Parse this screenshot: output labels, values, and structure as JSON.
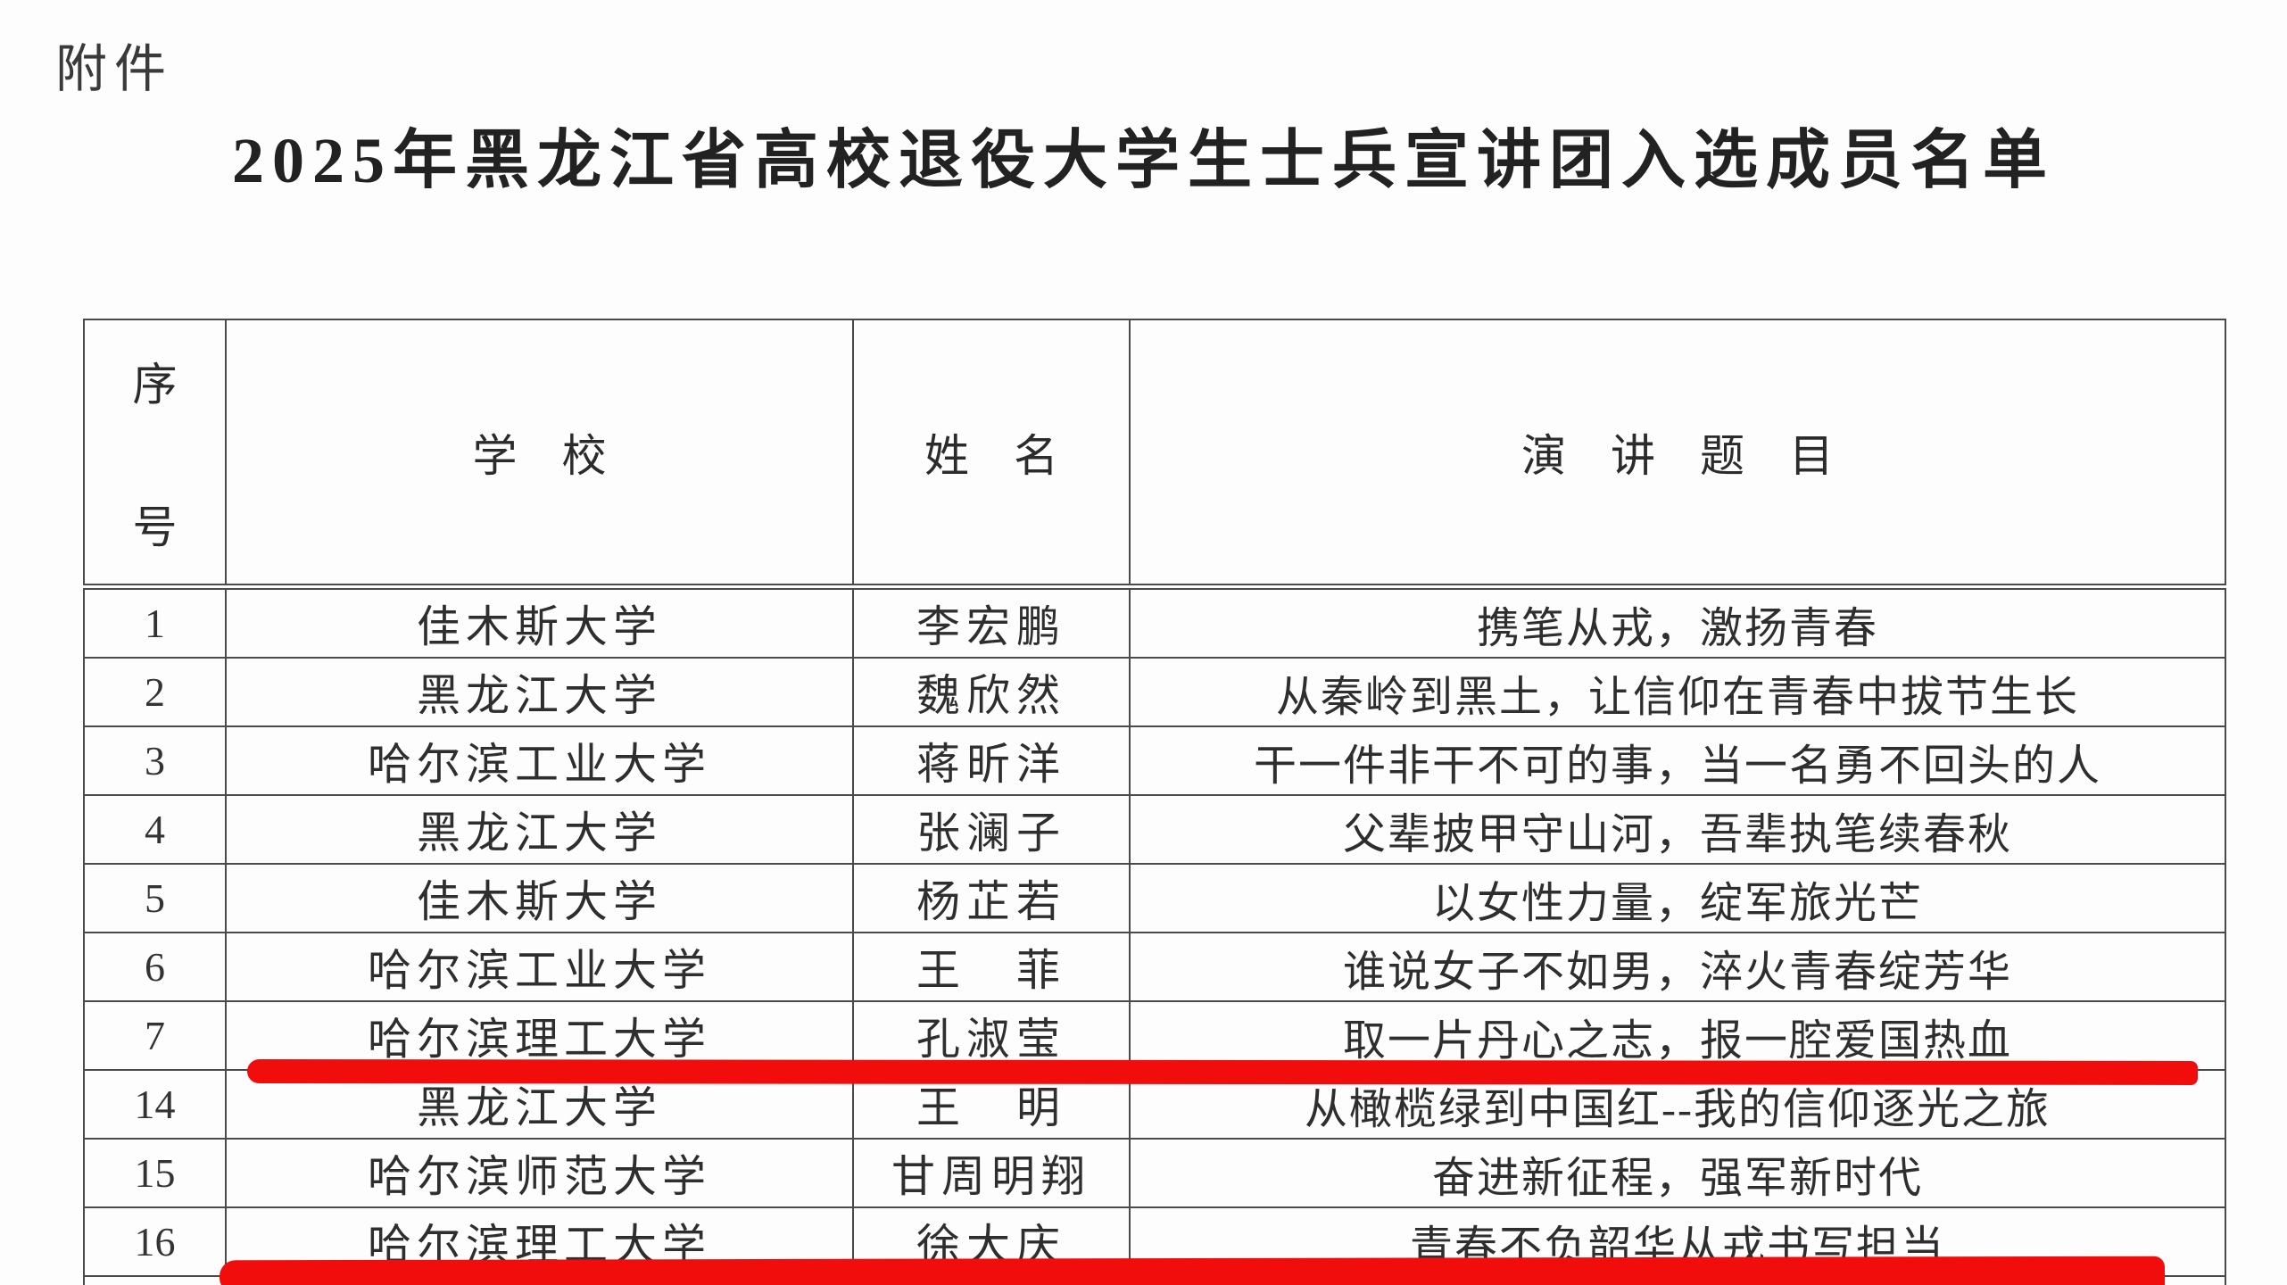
{
  "document": {
    "attachment_label": "附件",
    "title": "2025年黑龙江省高校退役大学生士兵宣讲团入选成员名单"
  },
  "table": {
    "headers": {
      "index_top": "序",
      "index_bottom": "号",
      "school": "学　校",
      "name": "姓　名",
      "topic": "演　讲　题　目"
    },
    "rows": [
      {
        "no": "1",
        "school": "佳木斯大学",
        "name": "李宏鹏",
        "topic": "携笔从戎，激扬青春"
      },
      {
        "no": "2",
        "school": "黑龙江大学",
        "name": "魏欣然",
        "topic": "从秦岭到黑土，让信仰在青春中拔节生长"
      },
      {
        "no": "3",
        "school": "哈尔滨工业大学",
        "name": "蒋昕洋",
        "topic": "干一件非干不可的事，当一名勇不回头的人"
      },
      {
        "no": "4",
        "school": "黑龙江大学",
        "name": "张澜子",
        "topic": "父辈披甲守山河，吾辈执笔续春秋"
      },
      {
        "no": "5",
        "school": "佳木斯大学",
        "name": "杨芷若",
        "topic": "以女性力量，绽军旅光芒"
      },
      {
        "no": "6",
        "school": "哈尔滨工业大学",
        "name": "王　菲",
        "topic": "谁说女子不如男，淬火青春绽芳华"
      },
      {
        "no": "7",
        "school": "哈尔滨理工大学",
        "name": "孔淑莹",
        "topic": "取一片丹心之志，报一腔爱国热血"
      },
      {
        "no": "14",
        "school": "黑龙江大学",
        "name": "王　明",
        "topic": "从橄榄绿到中国红--我的信仰逐光之旅"
      },
      {
        "no": "15",
        "school": "哈尔滨师范大学",
        "name": "甘周明翔",
        "topic": "奋进新征程，强军新时代"
      },
      {
        "no": "16",
        "school": "哈尔滨理工大学",
        "name": "徐大庆",
        "topic": "青春不负韶华从戎书写担当"
      }
    ]
  },
  "annotations": {
    "highlight_color": "#f20d0d",
    "underlined_row_numbers": [
      "7",
      "16"
    ]
  }
}
